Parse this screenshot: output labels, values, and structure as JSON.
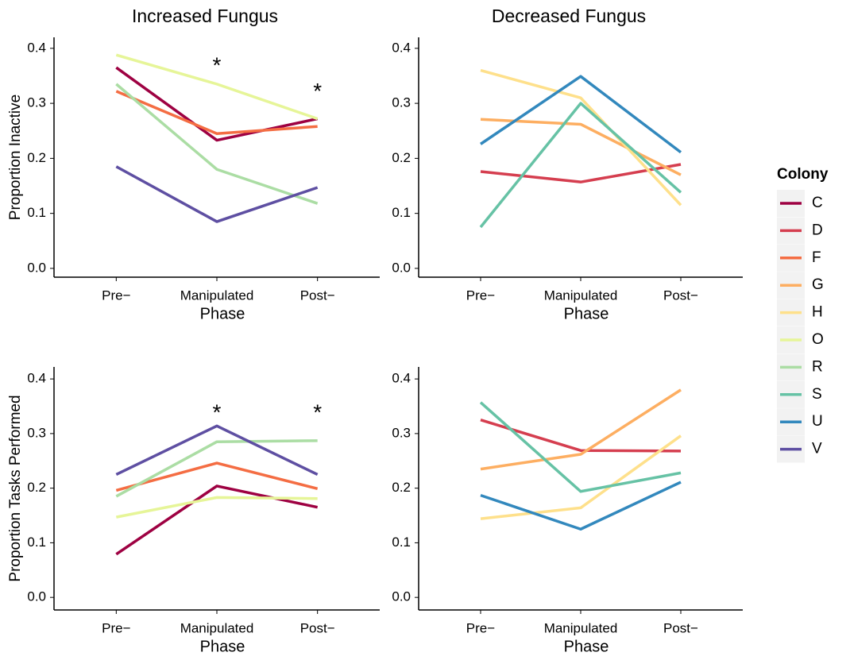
{
  "chart_data": [
    {
      "type": "line",
      "title": "Increased Fungus",
      "ylabel": "Proportion Inactive",
      "xlabel": "Phase",
      "categories": [
        "Pre−",
        "Manipulated",
        "Post−"
      ],
      "ylim": [
        -0.016,
        0.42
      ],
      "yticks": [
        {
          "value": 0,
          "label": "0.0"
        },
        0.1,
        0.2,
        0.3,
        0.4
      ],
      "series": [
        {
          "name": "C",
          "color": "#9e0142",
          "values": [
            0.365,
            0.233,
            0.272
          ]
        },
        {
          "name": "F",
          "color": "#f46d43",
          "values": [
            0.322,
            0.245,
            0.258
          ]
        },
        {
          "name": "O",
          "color": "#e6f598",
          "values": [
            0.388,
            0.335,
            0.272
          ]
        },
        {
          "name": "R",
          "color": "#abdda4",
          "values": [
            0.335,
            0.18,
            0.118
          ]
        },
        {
          "name": "V",
          "color": "#5e4fa2",
          "values": [
            0.185,
            0.085,
            0.147
          ]
        }
      ],
      "annotations": [
        {
          "text": "*",
          "x": "Manipulated",
          "y": 0.375
        },
        {
          "text": "*",
          "x": "Post−",
          "y": 0.328
        }
      ]
    },
    {
      "type": "line",
      "title": "Decreased Fungus",
      "xlabel": "Phase",
      "categories": [
        "Pre−",
        "Manipulated",
        "Post−"
      ],
      "ylim": [
        -0.016,
        0.42
      ],
      "yticks": [
        {
          "value": 0,
          "label": "0.0"
        },
        0.1,
        0.2,
        0.3,
        0.4
      ],
      "series": [
        {
          "name": "D",
          "color": "#d53e4f",
          "values": [
            0.176,
            0.157,
            0.189
          ]
        },
        {
          "name": "G",
          "color": "#fdae61",
          "values": [
            0.271,
            0.262,
            0.17
          ]
        },
        {
          "name": "H",
          "color": "#fee08b",
          "values": [
            0.36,
            0.31,
            0.115
          ]
        },
        {
          "name": "S",
          "color": "#66c2a5",
          "values": [
            0.075,
            0.3,
            0.138
          ]
        },
        {
          "name": "U",
          "color": "#3288bd",
          "values": [
            0.226,
            0.349,
            0.211
          ]
        }
      ]
    },
    {
      "type": "line",
      "ylabel": "Proportion Tasks Performed",
      "xlabel": "Phase",
      "categories": [
        "Pre−",
        "Manipulated",
        "Post−"
      ],
      "ylim": [
        -0.023,
        0.422
      ],
      "yticks": [
        {
          "value": 0,
          "label": "0.0"
        },
        0.1,
        0.2,
        0.3,
        0.4
      ],
      "series": [
        {
          "name": "C",
          "color": "#9e0142",
          "values": [
            0.079,
            0.204,
            0.165
          ]
        },
        {
          "name": "F",
          "color": "#f46d43",
          "values": [
            0.196,
            0.246,
            0.199
          ]
        },
        {
          "name": "O",
          "color": "#e6f598",
          "values": [
            0.147,
            0.183,
            0.181
          ]
        },
        {
          "name": "R",
          "color": "#abdda4",
          "values": [
            0.185,
            0.285,
            0.287
          ]
        },
        {
          "name": "V",
          "color": "#5e4fa2",
          "values": [
            0.225,
            0.314,
            0.225
          ]
        }
      ],
      "annotations": [
        {
          "text": "*",
          "x": "Manipulated",
          "y": 0.345
        },
        {
          "text": "*",
          "x": "Post−",
          "y": 0.345
        }
      ]
    },
    {
      "type": "line",
      "xlabel": "Phase",
      "categories": [
        "Pre−",
        "Manipulated",
        "Post−"
      ],
      "ylim": [
        -0.023,
        0.422
      ],
      "yticks": [
        {
          "value": 0,
          "label": "0.0"
        },
        0.1,
        0.2,
        0.3,
        0.4
      ],
      "series": [
        {
          "name": "D",
          "color": "#d53e4f",
          "values": [
            0.325,
            0.269,
            0.268
          ]
        },
        {
          "name": "G",
          "color": "#fdae61",
          "values": [
            0.235,
            0.262,
            0.38
          ]
        },
        {
          "name": "H",
          "color": "#fee08b",
          "values": [
            0.144,
            0.164,
            0.296
          ]
        },
        {
          "name": "S",
          "color": "#66c2a5",
          "values": [
            0.357,
            0.194,
            0.228
          ]
        },
        {
          "name": "U",
          "color": "#3288bd",
          "values": [
            0.187,
            0.125,
            0.211
          ]
        }
      ]
    }
  ],
  "legend": {
    "title": "Colony",
    "items": [
      {
        "name": "C",
        "color": "#9e0142"
      },
      {
        "name": "D",
        "color": "#d53e4f"
      },
      {
        "name": "F",
        "color": "#f46d43"
      },
      {
        "name": "G",
        "color": "#fdae61"
      },
      {
        "name": "H",
        "color": "#fee08b"
      },
      {
        "name": "O",
        "color": "#e6f598"
      },
      {
        "name": "R",
        "color": "#abdda4"
      },
      {
        "name": "S",
        "color": "#66c2a5"
      },
      {
        "name": "U",
        "color": "#3288bd"
      },
      {
        "name": "V",
        "color": "#5e4fa2"
      }
    ]
  }
}
